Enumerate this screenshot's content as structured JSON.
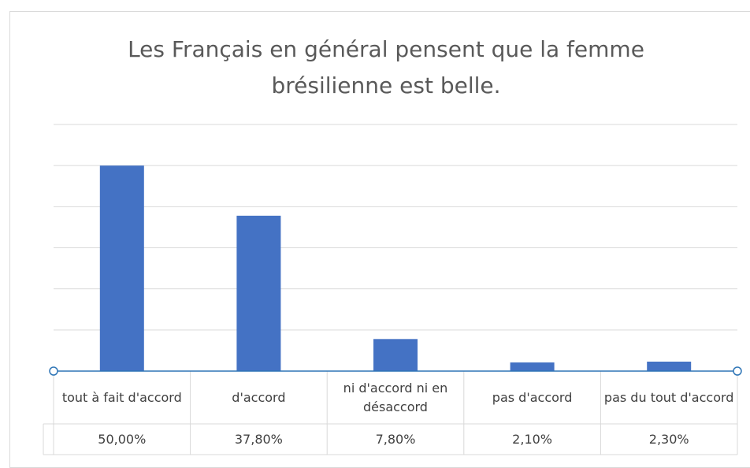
{
  "chart_data": {
    "type": "bar",
    "title": "Les Français en général pensent que la femme brésilienne est belle.",
    "categories": [
      "tout à fait d'accord",
      "d'accord",
      "ni d'accord ni en désaccord",
      "pas d'accord",
      "pas du tout d'accord"
    ],
    "values": [
      50,
      37.8,
      7.8,
      2.1,
      2.3
    ],
    "value_labels": [
      "50,00%",
      "37,80%",
      "7,80%",
      "2,10%",
      "2,30%"
    ],
    "color": "#4472c4",
    "ylim": [
      0,
      60
    ],
    "yticks": [
      0,
      10,
      20,
      30,
      40,
      50,
      60
    ],
    "grid": true
  }
}
